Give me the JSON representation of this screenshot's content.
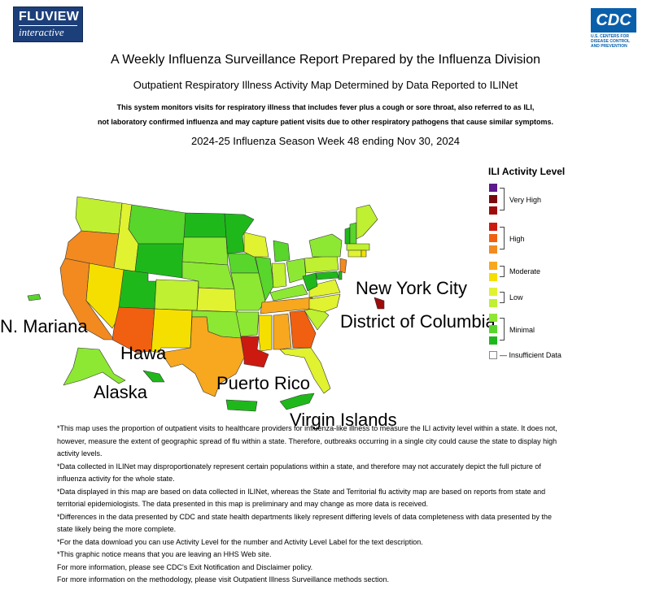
{
  "header": {
    "logo_left_line1": "FLUVIEW",
    "logo_left_line2": "interactive",
    "logo_right": "CDC",
    "logo_right_sub": "U.S. CENTERS FOR DISEASE CONTROL AND PREVENTION"
  },
  "titles": {
    "main": "A Weekly Influenza Surveillance Report Prepared by the Influenza Division",
    "sub": "Outpatient Respiratory Illness Activity Map Determined by Data Reported to ILINet",
    "desc1": "This system monitors visits for respiratory illness that includes fever plus a cough or sore throat, also referred to as ILI,",
    "desc2": "not laboratory confirmed influenza and may capture patient visits due to other respiratory pathogens that cause similar symptoms.",
    "week": "2024-25 Influenza Season Week 48 ending Nov 30, 2024"
  },
  "map_labels": {
    "nyc": "New York City",
    "dc": "District of Columbia",
    "pr": "Puerto Rico",
    "vi": "Virgin Islands",
    "alaska": "Alaska",
    "hawaii": "Hawa",
    "mariana": "N. Mariana"
  },
  "legend": {
    "title": "ILI Activity Level",
    "very_high": "Very High",
    "high": "High",
    "moderate": "Moderate",
    "low": "Low",
    "minimal": "Minimal",
    "insufficient": "Insufficient Data",
    "colors": {
      "l13": "#5c1a8a",
      "l12": "#7a0a0a",
      "l11": "#9e0b0b",
      "l10": "#cc1a10",
      "l9": "#f06010",
      "l8": "#f28a20",
      "l7": "#f7a81e",
      "l6": "#f5df00",
      "l5": "#e0f230",
      "l4": "#bff031",
      "l3": "#8de833",
      "l2": "#58d62b",
      "l1": "#1fb81b",
      "insufficient": "#ffffff"
    }
  },
  "notes": [
    "*This map uses the proportion of outpatient visits to healthcare providers for influenza-like illness to measure the ILI activity level within a state. It does not, however, measure the extent of geographic spread of flu within a state. Therefore, outbreaks occurring in a single city could cause the state to display high activity levels.",
    "*Data collected in ILINet may disproportionately represent certain populations within a state, and therefore may not accurately depict the full picture of influenza activity for the whole state.",
    "*Data displayed in this map are based on data collected in ILINet, whereas the State and Territorial flu activity map are based on reports from state and territorial epidemiologists. The data presented in this map is preliminary and may change as more data is received.",
    "*Differences in the data presented by CDC and state health departments likely represent differing levels of data completeness with data presented by the state likely being the more complete.",
    "*For the data download you can use Activity Level for the number and Activity Level Label for the text description.",
    "*This graphic notice means that you are leaving an HHS Web site.",
    "For more information, please see CDC's Exit Notification and Disclaimer policy.",
    "For more information on the methodology, please visit Outpatient Illness Surveillance methods section."
  ]
}
